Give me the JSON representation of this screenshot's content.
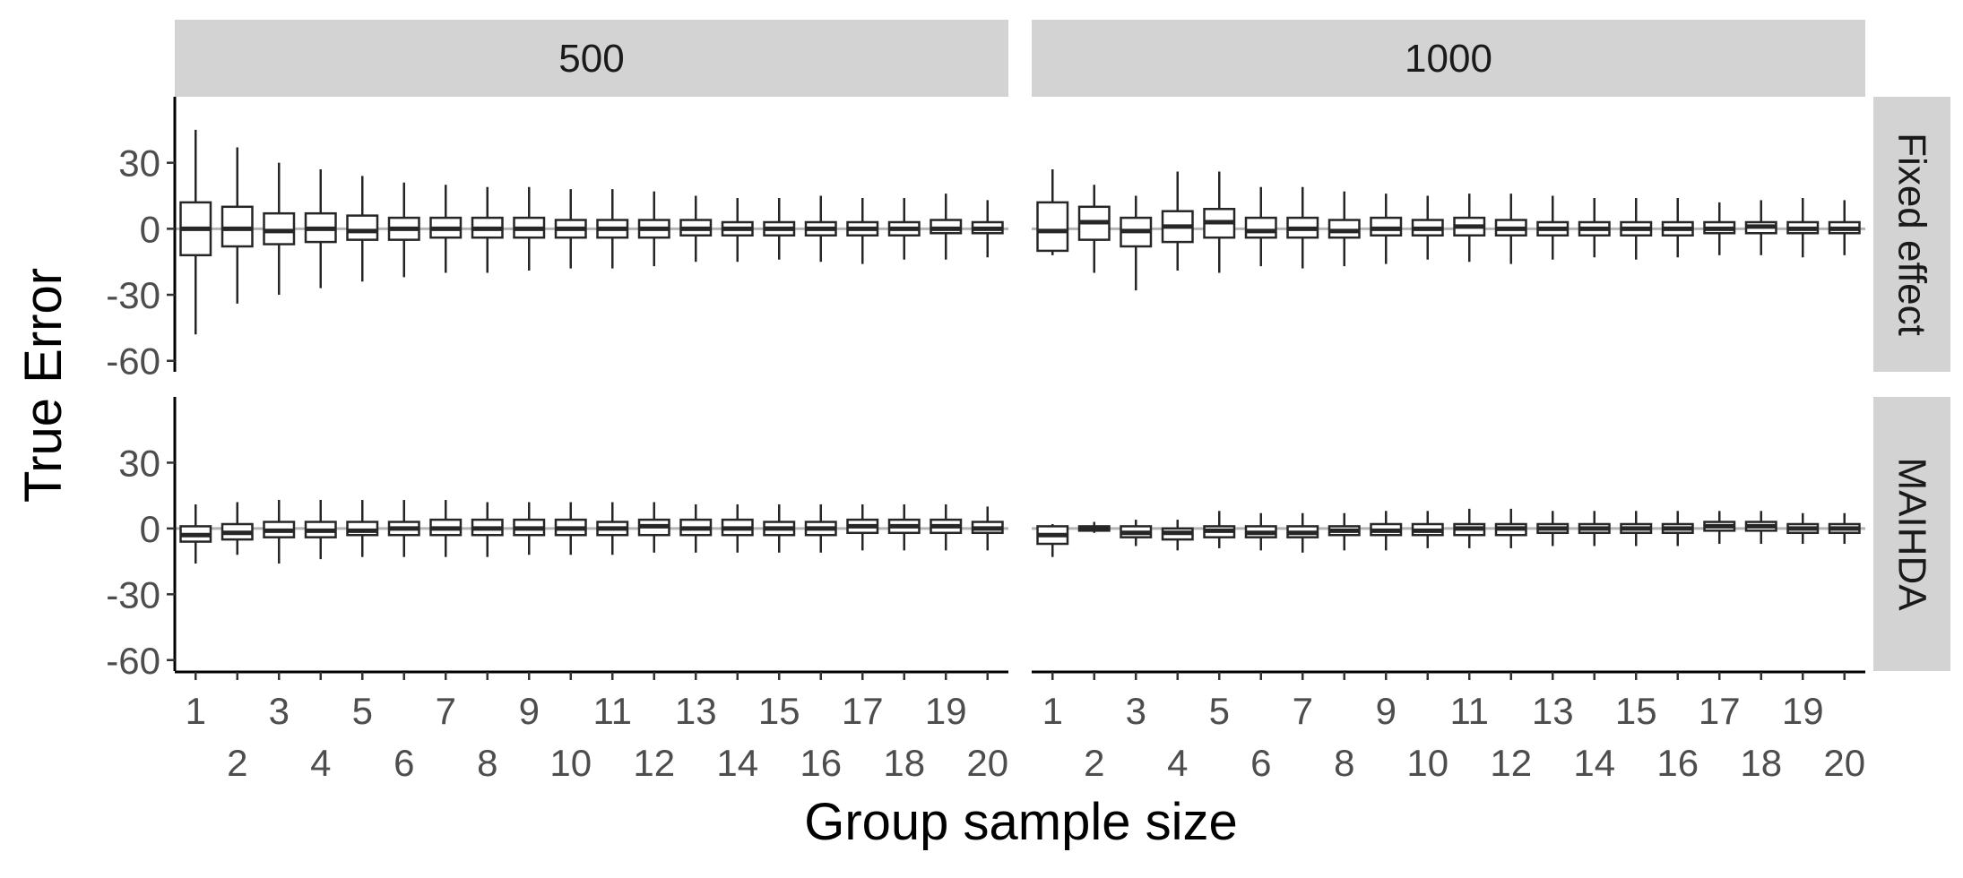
{
  "chart_data": {
    "type": "boxplot",
    "xlabel": "Group sample size",
    "ylabel": "True Error",
    "column_facets": [
      "500",
      "1000"
    ],
    "row_facets": [
      "Fixed effect",
      "MAIHDA"
    ],
    "categories": [
      "1",
      "2",
      "3",
      "4",
      "5",
      "6",
      "7",
      "8",
      "9",
      "10",
      "11",
      "12",
      "13",
      "14",
      "15",
      "16",
      "17",
      "18",
      "19",
      "20"
    ],
    "y_ticks": [
      30,
      0,
      -30,
      -60
    ],
    "y_tick_labels": [
      "30",
      "0",
      "-30",
      "-60"
    ],
    "ylim": [
      -65,
      60
    ],
    "reference_line": 0,
    "grid": false,
    "colors": {
      "box_stroke": "#262626",
      "box_fill": "#ffffff",
      "strip_fill": "#d3d3d3",
      "reference_line": "#b3b3b3",
      "axis": "#000000"
    },
    "panels": [
      {
        "column": "500",
        "row": "Fixed effect",
        "boxes": [
          {
            "whisker_low": -48,
            "q1": -12,
            "median": 0,
            "q3": 12,
            "whisker_high": 45
          },
          {
            "whisker_low": -34,
            "q1": -8,
            "median": 0,
            "q3": 10,
            "whisker_high": 37
          },
          {
            "whisker_low": -30,
            "q1": -7,
            "median": -1,
            "q3": 7,
            "whisker_high": 30
          },
          {
            "whisker_low": -27,
            "q1": -6,
            "median": 0,
            "q3": 7,
            "whisker_high": 27
          },
          {
            "whisker_low": -24,
            "q1": -5,
            "median": -1,
            "q3": 6,
            "whisker_high": 24
          },
          {
            "whisker_low": -22,
            "q1": -5,
            "median": 0,
            "q3": 5,
            "whisker_high": 21
          },
          {
            "whisker_low": -20,
            "q1": -4,
            "median": 0,
            "q3": 5,
            "whisker_high": 20
          },
          {
            "whisker_low": -20,
            "q1": -4,
            "median": 0,
            "q3": 5,
            "whisker_high": 19
          },
          {
            "whisker_low": -19,
            "q1": -4,
            "median": 0,
            "q3": 5,
            "whisker_high": 19
          },
          {
            "whisker_low": -18,
            "q1": -4,
            "median": 0,
            "q3": 4,
            "whisker_high": 18
          },
          {
            "whisker_low": -18,
            "q1": -4,
            "median": 0,
            "q3": 4,
            "whisker_high": 18
          },
          {
            "whisker_low": -17,
            "q1": -4,
            "median": 0,
            "q3": 4,
            "whisker_high": 17
          },
          {
            "whisker_low": -15,
            "q1": -3,
            "median": 0,
            "q3": 4,
            "whisker_high": 15
          },
          {
            "whisker_low": -15,
            "q1": -3,
            "median": 0,
            "q3": 3,
            "whisker_high": 14
          },
          {
            "whisker_low": -14,
            "q1": -3,
            "median": 0,
            "q3": 3,
            "whisker_high": 14
          },
          {
            "whisker_low": -15,
            "q1": -3,
            "median": 0,
            "q3": 3,
            "whisker_high": 15
          },
          {
            "whisker_low": -16,
            "q1": -3,
            "median": 0,
            "q3": 3,
            "whisker_high": 14
          },
          {
            "whisker_low": -14,
            "q1": -3,
            "median": 0,
            "q3": 3,
            "whisker_high": 14
          },
          {
            "whisker_low": -14,
            "q1": -2,
            "median": 0,
            "q3": 4,
            "whisker_high": 16
          },
          {
            "whisker_low": -13,
            "q1": -2,
            "median": 0,
            "q3": 3,
            "whisker_high": 13
          }
        ]
      },
      {
        "column": "1000",
        "row": "Fixed effect",
        "boxes": [
          {
            "whisker_low": -12,
            "q1": -10,
            "median": -1,
            "q3": 12,
            "whisker_high": 27
          },
          {
            "whisker_low": -20,
            "q1": -5,
            "median": 3,
            "q3": 10,
            "whisker_high": 20
          },
          {
            "whisker_low": -28,
            "q1": -8,
            "median": -1,
            "q3": 5,
            "whisker_high": 15
          },
          {
            "whisker_low": -19,
            "q1": -6,
            "median": 1,
            "q3": 8,
            "whisker_high": 26
          },
          {
            "whisker_low": -20,
            "q1": -4,
            "median": 3,
            "q3": 9,
            "whisker_high": 26
          },
          {
            "whisker_low": -17,
            "q1": -4,
            "median": -1,
            "q3": 5,
            "whisker_high": 19
          },
          {
            "whisker_low": -18,
            "q1": -4,
            "median": 0,
            "q3": 5,
            "whisker_high": 19
          },
          {
            "whisker_low": -17,
            "q1": -4,
            "median": -1,
            "q3": 4,
            "whisker_high": 17
          },
          {
            "whisker_low": -16,
            "q1": -3,
            "median": 0,
            "q3": 5,
            "whisker_high": 16
          },
          {
            "whisker_low": -14,
            "q1": -3,
            "median": 0,
            "q3": 4,
            "whisker_high": 15
          },
          {
            "whisker_low": -15,
            "q1": -3,
            "median": 1,
            "q3": 5,
            "whisker_high": 16
          },
          {
            "whisker_low": -16,
            "q1": -3,
            "median": 0,
            "q3": 4,
            "whisker_high": 16
          },
          {
            "whisker_low": -14,
            "q1": -3,
            "median": 0,
            "q3": 3,
            "whisker_high": 15
          },
          {
            "whisker_low": -13,
            "q1": -3,
            "median": 0,
            "q3": 3,
            "whisker_high": 14
          },
          {
            "whisker_low": -14,
            "q1": -3,
            "median": 0,
            "q3": 3,
            "whisker_high": 14
          },
          {
            "whisker_low": -13,
            "q1": -3,
            "median": 0,
            "q3": 3,
            "whisker_high": 14
          },
          {
            "whisker_low": -12,
            "q1": -2,
            "median": 0,
            "q3": 3,
            "whisker_high": 12
          },
          {
            "whisker_low": -12,
            "q1": -2,
            "median": 1,
            "q3": 3,
            "whisker_high": 13
          },
          {
            "whisker_low": -13,
            "q1": -2,
            "median": 0,
            "q3": 3,
            "whisker_high": 14
          },
          {
            "whisker_low": -12,
            "q1": -2,
            "median": 0,
            "q3": 3,
            "whisker_high": 13
          }
        ]
      },
      {
        "column": "500",
        "row": "MAIHDA",
        "boxes": [
          {
            "whisker_low": -16,
            "q1": -6,
            "median": -3,
            "q3": 1,
            "whisker_high": 11
          },
          {
            "whisker_low": -12,
            "q1": -5,
            "median": -2,
            "q3": 2,
            "whisker_high": 12
          },
          {
            "whisker_low": -16,
            "q1": -4,
            "median": -1,
            "q3": 3,
            "whisker_high": 13
          },
          {
            "whisker_low": -14,
            "q1": -4,
            "median": -1,
            "q3": 3,
            "whisker_high": 13
          },
          {
            "whisker_low": -13,
            "q1": -3,
            "median": -1,
            "q3": 3,
            "whisker_high": 13
          },
          {
            "whisker_low": -13,
            "q1": -3,
            "median": 0,
            "q3": 3,
            "whisker_high": 13
          },
          {
            "whisker_low": -13,
            "q1": -3,
            "median": 0,
            "q3": 4,
            "whisker_high": 13
          },
          {
            "whisker_low": -13,
            "q1": -3,
            "median": 0,
            "q3": 4,
            "whisker_high": 12
          },
          {
            "whisker_low": -12,
            "q1": -3,
            "median": 0,
            "q3": 4,
            "whisker_high": 12
          },
          {
            "whisker_low": -12,
            "q1": -3,
            "median": 0,
            "q3": 4,
            "whisker_high": 12
          },
          {
            "whisker_low": -12,
            "q1": -3,
            "median": 0,
            "q3": 3,
            "whisker_high": 12
          },
          {
            "whisker_low": -11,
            "q1": -3,
            "median": 1,
            "q3": 4,
            "whisker_high": 12
          },
          {
            "whisker_low": -11,
            "q1": -3,
            "median": 0,
            "q3": 4,
            "whisker_high": 11
          },
          {
            "whisker_low": -11,
            "q1": -3,
            "median": 0,
            "q3": 4,
            "whisker_high": 11
          },
          {
            "whisker_low": -11,
            "q1": -3,
            "median": 0,
            "q3": 3,
            "whisker_high": 11
          },
          {
            "whisker_low": -11,
            "q1": -3,
            "median": 0,
            "q3": 3,
            "whisker_high": 11
          },
          {
            "whisker_low": -10,
            "q1": -2,
            "median": 1,
            "q3": 4,
            "whisker_high": 11
          },
          {
            "whisker_low": -10,
            "q1": -2,
            "median": 1,
            "q3": 4,
            "whisker_high": 11
          },
          {
            "whisker_low": -10,
            "q1": -2,
            "median": 1,
            "q3": 4,
            "whisker_high": 11
          },
          {
            "whisker_low": -10,
            "q1": -2,
            "median": 0,
            "q3": 3,
            "whisker_high": 10
          }
        ]
      },
      {
        "column": "1000",
        "row": "MAIHDA",
        "boxes": [
          {
            "whisker_low": -13,
            "q1": -7,
            "median": -3,
            "q3": 1,
            "whisker_high": 2
          },
          {
            "whisker_low": -2,
            "q1": -1,
            "median": 0,
            "q3": 1,
            "whisker_high": 3
          },
          {
            "whisker_low": -8,
            "q1": -4,
            "median": -2,
            "q3": 1,
            "whisker_high": 4
          },
          {
            "whisker_low": -10,
            "q1": -5,
            "median": -2,
            "q3": 0,
            "whisker_high": 4
          },
          {
            "whisker_low": -9,
            "q1": -4,
            "median": -1,
            "q3": 1,
            "whisker_high": 8
          },
          {
            "whisker_low": -10,
            "q1": -4,
            "median": -2,
            "q3": 1,
            "whisker_high": 7
          },
          {
            "whisker_low": -11,
            "q1": -4,
            "median": -2,
            "q3": 1,
            "whisker_high": 7
          },
          {
            "whisker_low": -10,
            "q1": -3,
            "median": -1,
            "q3": 1,
            "whisker_high": 7
          },
          {
            "whisker_low": -10,
            "q1": -3,
            "median": -1,
            "q3": 2,
            "whisker_high": 8
          },
          {
            "whisker_low": -9,
            "q1": -3,
            "median": -1,
            "q3": 2,
            "whisker_high": 8
          },
          {
            "whisker_low": -9,
            "q1": -3,
            "median": 0,
            "q3": 2,
            "whisker_high": 9
          },
          {
            "whisker_low": -9,
            "q1": -3,
            "median": 0,
            "q3": 2,
            "whisker_high": 9
          },
          {
            "whisker_low": -8,
            "q1": -2,
            "median": 0,
            "q3": 2,
            "whisker_high": 8
          },
          {
            "whisker_low": -8,
            "q1": -2,
            "median": 0,
            "q3": 2,
            "whisker_high": 8
          },
          {
            "whisker_low": -8,
            "q1": -2,
            "median": 0,
            "q3": 2,
            "whisker_high": 8
          },
          {
            "whisker_low": -8,
            "q1": -2,
            "median": 0,
            "q3": 2,
            "whisker_high": 8
          },
          {
            "whisker_low": -7,
            "q1": -1,
            "median": 1,
            "q3": 3,
            "whisker_high": 8
          },
          {
            "whisker_low": -7,
            "q1": -1,
            "median": 1,
            "q3": 3,
            "whisker_high": 8
          },
          {
            "whisker_low": -7,
            "q1": -2,
            "median": 0,
            "q3": 2,
            "whisker_high": 7
          },
          {
            "whisker_low": -7,
            "q1": -2,
            "median": 0,
            "q3": 2,
            "whisker_high": 7
          }
        ]
      }
    ]
  }
}
